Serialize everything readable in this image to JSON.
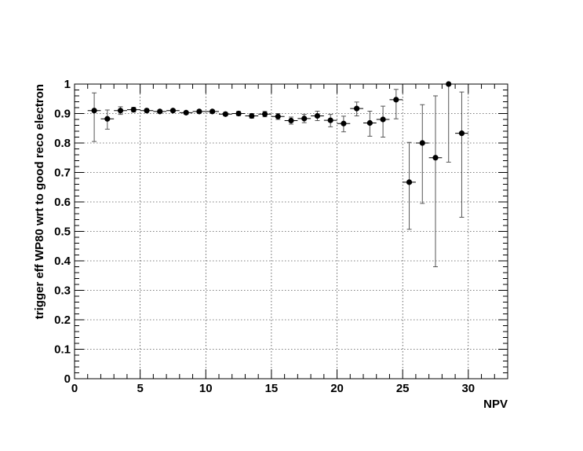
{
  "chart_data": {
    "type": "scatter",
    "xlabel": "NPV",
    "ylabel": "trigger eff WP80 wrt to good reco electron",
    "xlim": [
      0,
      33
    ],
    "ylim": [
      0,
      1
    ],
    "x_ticks": [
      "0",
      "5",
      "10",
      "15",
      "20",
      "25",
      "30"
    ],
    "y_ticks": [
      "0",
      "0.1",
      "0.2",
      "0.3",
      "0.4",
      "0.5",
      "0.6",
      "0.7",
      "0.8",
      "0.9",
      "1"
    ],
    "grid": true,
    "marker_color": "#000000",
    "points": [
      {
        "x": 1.5,
        "y": 0.91,
        "err_low": 0.105,
        "err_high": 0.06,
        "xerr": 0.5
      },
      {
        "x": 2.5,
        "y": 0.882,
        "err_low": 0.035,
        "err_high": 0.03,
        "xerr": 0.5
      },
      {
        "x": 3.5,
        "y": 0.91,
        "err_low": 0.013,
        "err_high": 0.013,
        "xerr": 0.5
      },
      {
        "x": 4.5,
        "y": 0.913,
        "err_low": 0.008,
        "err_high": 0.008,
        "xerr": 0.5
      },
      {
        "x": 5.5,
        "y": 0.91,
        "err_low": 0.006,
        "err_high": 0.006,
        "xerr": 0.5
      },
      {
        "x": 6.5,
        "y": 0.907,
        "err_low": 0.005,
        "err_high": 0.005,
        "xerr": 0.5
      },
      {
        "x": 7.5,
        "y": 0.91,
        "err_low": 0.005,
        "err_high": 0.005,
        "xerr": 0.5
      },
      {
        "x": 8.5,
        "y": 0.903,
        "err_low": 0.005,
        "err_high": 0.005,
        "xerr": 0.5
      },
      {
        "x": 9.5,
        "y": 0.907,
        "err_low": 0.005,
        "err_high": 0.005,
        "xerr": 0.5
      },
      {
        "x": 10.5,
        "y": 0.907,
        "err_low": 0.005,
        "err_high": 0.005,
        "xerr": 0.5
      },
      {
        "x": 11.5,
        "y": 0.898,
        "err_low": 0.006,
        "err_high": 0.006,
        "xerr": 0.5
      },
      {
        "x": 12.5,
        "y": 0.9,
        "err_low": 0.007,
        "err_high": 0.007,
        "xerr": 0.5
      },
      {
        "x": 13.5,
        "y": 0.892,
        "err_low": 0.008,
        "err_high": 0.008,
        "xerr": 0.5
      },
      {
        "x": 14.5,
        "y": 0.898,
        "err_low": 0.009,
        "err_high": 0.009,
        "xerr": 0.5
      },
      {
        "x": 15.5,
        "y": 0.89,
        "err_low": 0.01,
        "err_high": 0.01,
        "xerr": 0.5
      },
      {
        "x": 16.5,
        "y": 0.876,
        "err_low": 0.012,
        "err_high": 0.012,
        "xerr": 0.5
      },
      {
        "x": 17.5,
        "y": 0.883,
        "err_low": 0.014,
        "err_high": 0.014,
        "xerr": 0.5
      },
      {
        "x": 18.5,
        "y": 0.892,
        "err_low": 0.016,
        "err_high": 0.016,
        "xerr": 0.5
      },
      {
        "x": 19.5,
        "y": 0.877,
        "err_low": 0.022,
        "err_high": 0.02,
        "xerr": 0.5
      },
      {
        "x": 20.5,
        "y": 0.866,
        "err_low": 0.028,
        "err_high": 0.025,
        "xerr": 0.5
      },
      {
        "x": 21.5,
        "y": 0.917,
        "err_low": 0.025,
        "err_high": 0.022,
        "xerr": 0.5
      },
      {
        "x": 22.5,
        "y": 0.868,
        "err_low": 0.045,
        "err_high": 0.04,
        "xerr": 0.5
      },
      {
        "x": 23.5,
        "y": 0.88,
        "err_low": 0.06,
        "err_high": 0.045,
        "xerr": 0.5
      },
      {
        "x": 24.5,
        "y": 0.947,
        "err_low": 0.065,
        "err_high": 0.035,
        "xerr": 0.5
      },
      {
        "x": 25.5,
        "y": 0.667,
        "err_low": 0.16,
        "err_high": 0.135,
        "xerr": 0.5
      },
      {
        "x": 26.5,
        "y": 0.8,
        "err_low": 0.205,
        "err_high": 0.13,
        "xerr": 0.5
      },
      {
        "x": 27.5,
        "y": 0.75,
        "err_low": 0.37,
        "err_high": 0.21,
        "xerr": 0.5
      },
      {
        "x": 28.5,
        "y": 1.0,
        "err_low": 0.265,
        "err_high": 0.0,
        "xerr": 0.0
      },
      {
        "x": 29.5,
        "y": 0.833,
        "err_low": 0.285,
        "err_high": 0.14,
        "xerr": 0.5
      }
    ]
  }
}
